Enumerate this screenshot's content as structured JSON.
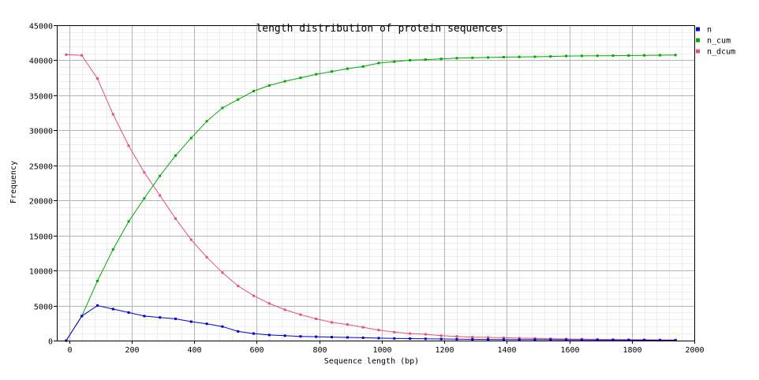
{
  "chart_data": {
    "type": "line",
    "title": "length distribution of protein sequences",
    "xlabel": "Sequence length (bp)",
    "ylabel": "Frequency",
    "xlim": [
      -40,
      2000
    ],
    "ylim": [
      0,
      45000
    ],
    "x_ticks": [
      0,
      200,
      400,
      600,
      800,
      1000,
      1200,
      1400,
      1600,
      1800,
      2000
    ],
    "y_ticks": [
      0,
      5000,
      10000,
      15000,
      20000,
      25000,
      30000,
      35000,
      40000,
      45000
    ],
    "grid": true,
    "legend_position": "right",
    "x": [
      -10,
      40,
      90,
      140,
      190,
      240,
      290,
      340,
      390,
      440,
      490,
      540,
      590,
      640,
      690,
      740,
      790,
      840,
      890,
      940,
      990,
      1040,
      1090,
      1140,
      1190,
      1240,
      1290,
      1340,
      1390,
      1440,
      1490,
      1540,
      1590,
      1640,
      1690,
      1740,
      1790,
      1840,
      1890,
      1940
    ],
    "series": [
      {
        "name": "n",
        "color": "#0000cc",
        "values": [
          0,
          3500,
          5000,
          4500,
          4000,
          3500,
          3300,
          3100,
          2700,
          2400,
          2000,
          1300,
          1000,
          800,
          700,
          600,
          550,
          500,
          450,
          400,
          350,
          300,
          280,
          250,
          220,
          200,
          180,
          160,
          150,
          140,
          130,
          120,
          110,
          100,
          90,
          80,
          70,
          60,
          50,
          40
        ]
      },
      {
        "name": "n_cum",
        "color": "#00aa00",
        "values": [
          0,
          3500,
          8500,
          13000,
          17000,
          20300,
          23500,
          26400,
          28900,
          31300,
          33200,
          34400,
          35600,
          36400,
          37000,
          37500,
          38000,
          38400,
          38800,
          39100,
          39600,
          39800,
          40000,
          40100,
          40200,
          40300,
          40350,
          40400,
          40450,
          40480,
          40500,
          40550,
          40600,
          40620,
          40640,
          40660,
          40680,
          40700,
          40720,
          40750
        ]
      },
      {
        "name": "n_dcum",
        "color": "#e8507a",
        "values": [
          40800,
          40700,
          37400,
          32300,
          27800,
          24000,
          20700,
          17400,
          14400,
          11900,
          9700,
          7800,
          6400,
          5300,
          4400,
          3700,
          3100,
          2600,
          2300,
          1900,
          1500,
          1200,
          1000,
          900,
          700,
          600,
          500,
          450,
          400,
          350,
          300,
          260,
          230,
          200,
          180,
          160,
          140,
          120,
          100,
          80
        ]
      }
    ]
  }
}
